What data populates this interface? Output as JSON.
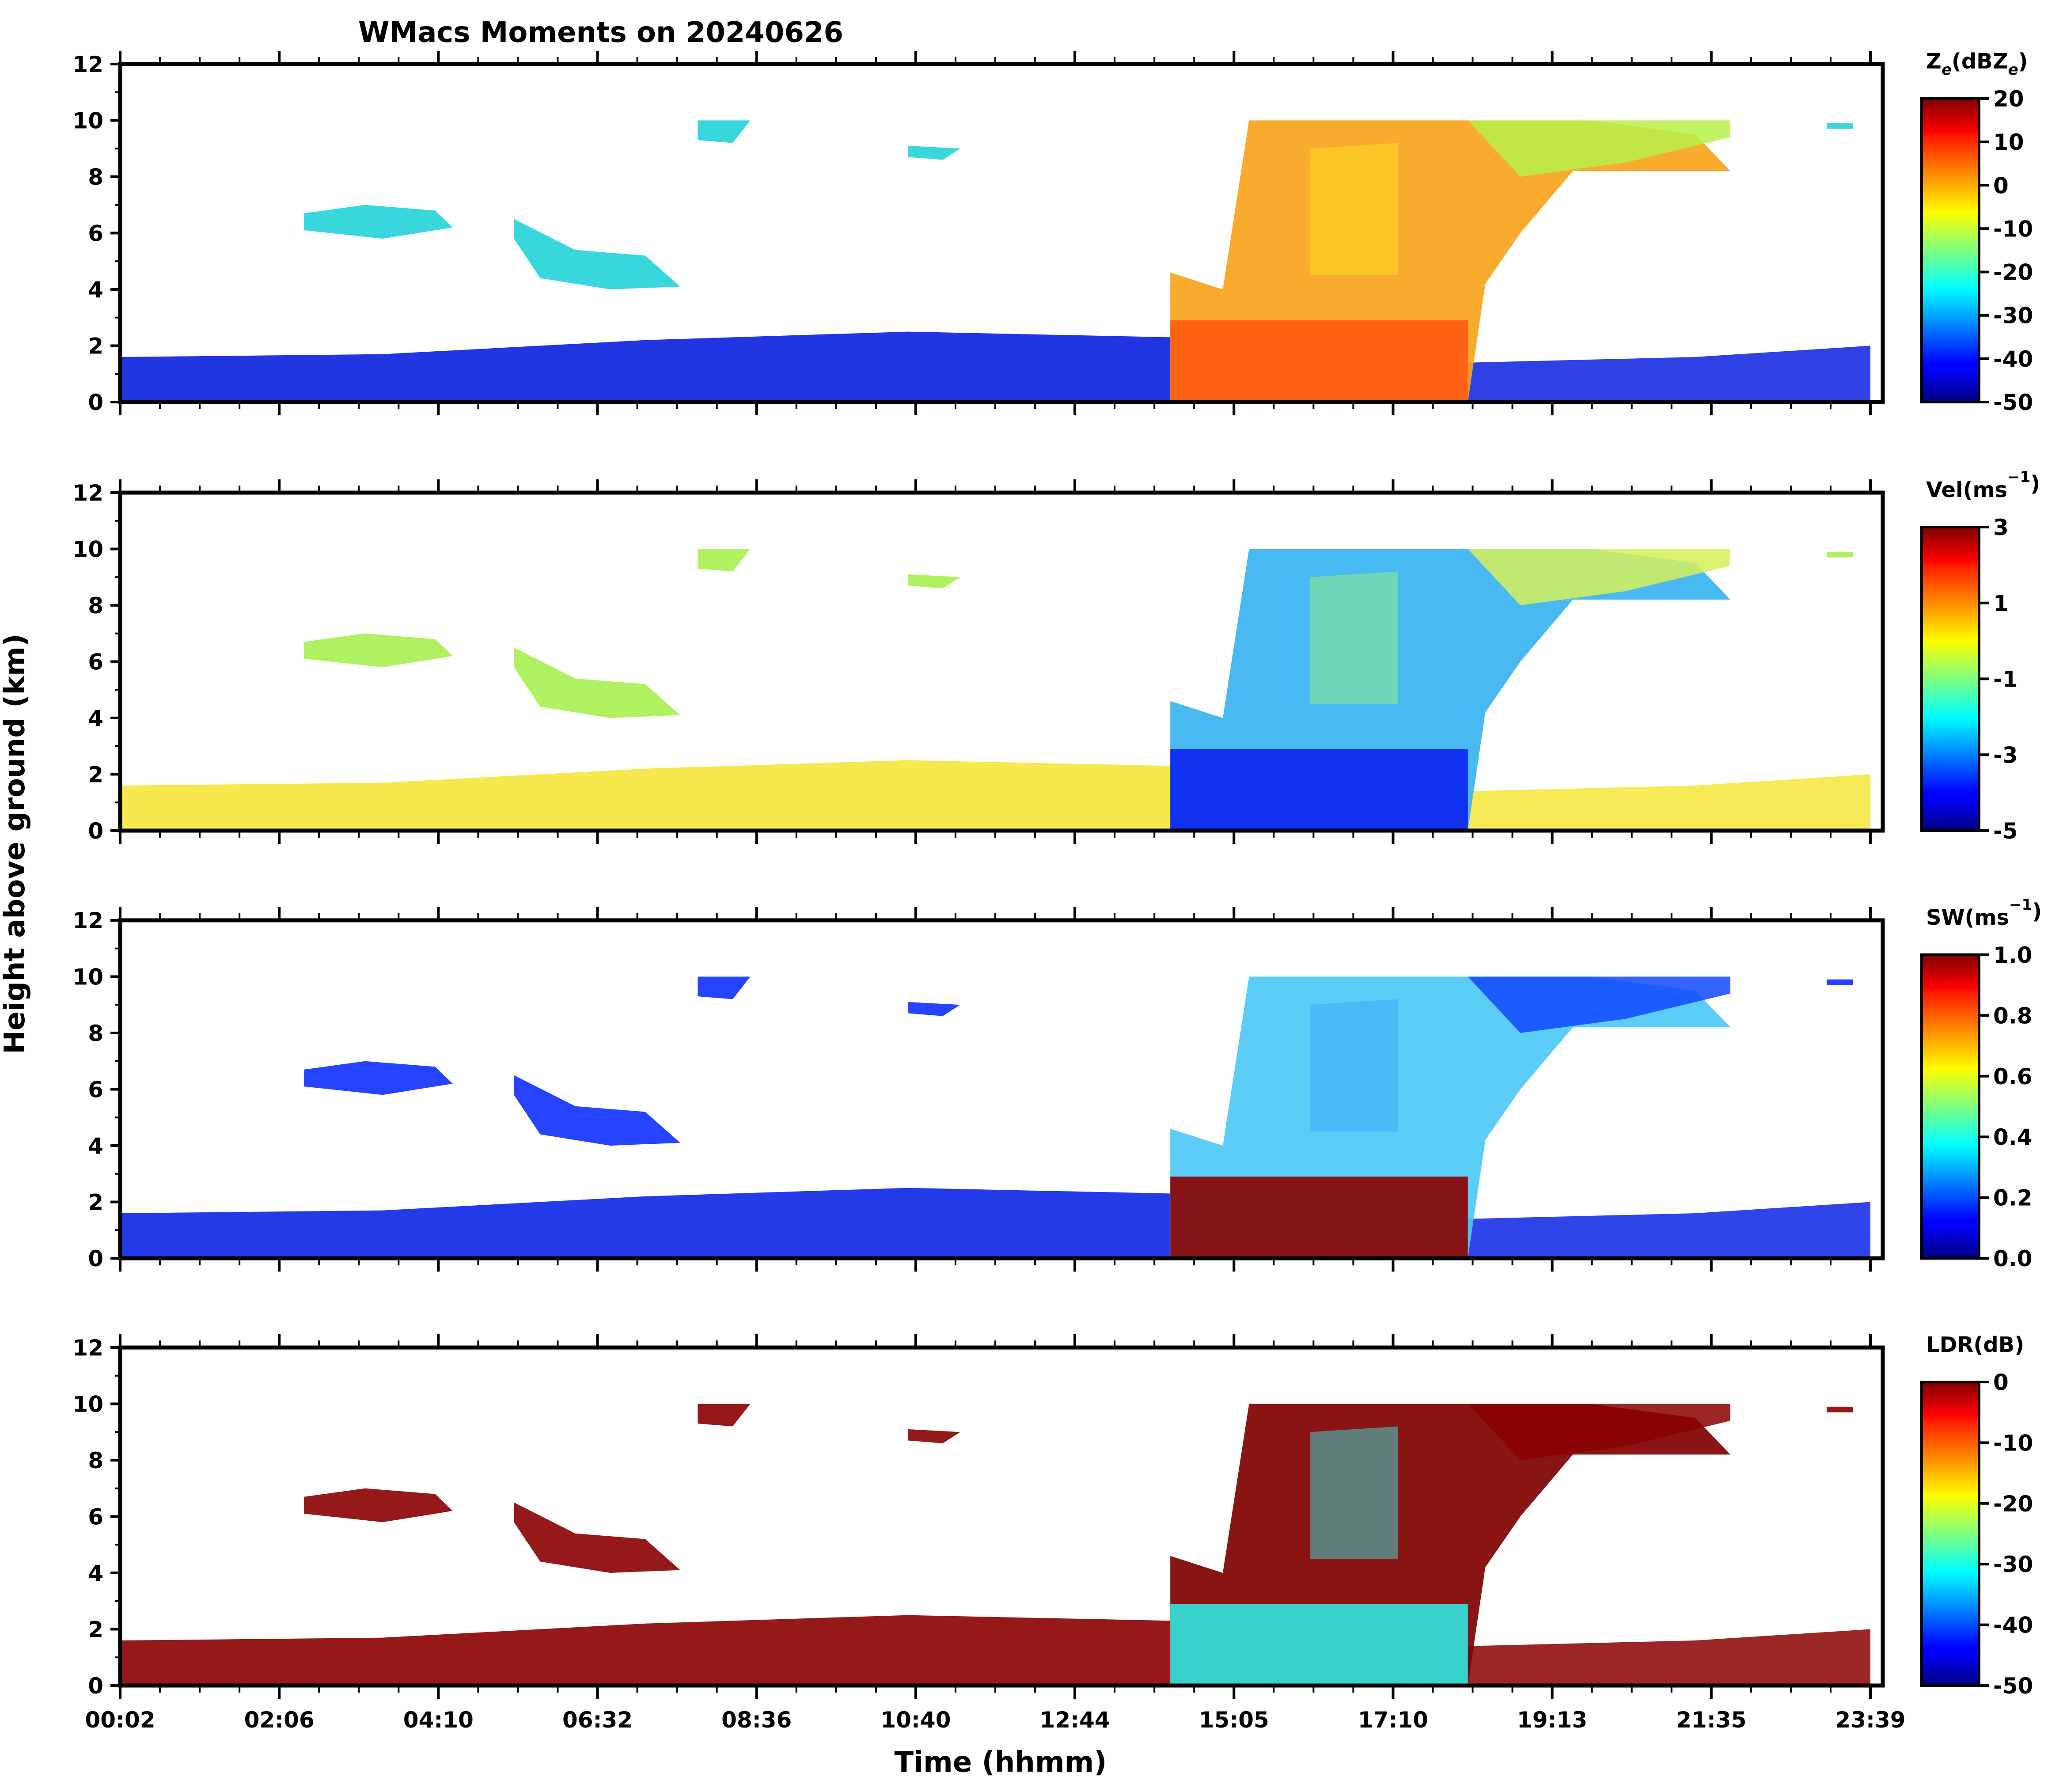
{
  "chart_data": {
    "type": "heatmap",
    "title": "WMacs Moments on 20240626",
    "xlabel": "Time (hhmm)",
    "ylabel": "Height above ground (km)",
    "x_ticks": [
      "00:02",
      "02:06",
      "04:10",
      "06:32",
      "08:36",
      "10:40",
      "12:44",
      "15:05",
      "17:10",
      "19:13",
      "21:35",
      "23:39"
    ],
    "y_ticks": [
      "0",
      "2",
      "4",
      "6",
      "8",
      "10",
      "12"
    ],
    "ylim": [
      0,
      12
    ],
    "panels": [
      {
        "name": "reflectivity",
        "colorbar_label": "Z_e(dBZ_e)",
        "label_main": "Z",
        "label_sub1": "e",
        "label_open": "(dBZ",
        "label_sub2": "e",
        "label_close": ")",
        "clim": [
          -50,
          20
        ],
        "ticks": [
          "20",
          "10",
          "0",
          "-10",
          "-20",
          "-30",
          "-40",
          "-50"
        ]
      },
      {
        "name": "velocity",
        "colorbar_label": "Vel(ms^-1)",
        "label_main": "Vel(ms",
        "label_sup": "−1",
        "label_close": ")",
        "clim": [
          -5,
          3
        ],
        "ticks": [
          "3",
          "1",
          "-1",
          "-3",
          "-5"
        ]
      },
      {
        "name": "spectral-width",
        "colorbar_label": "SW(ms^-1)",
        "label_main": "SW(ms",
        "label_sup": "−1",
        "label_close": ")",
        "clim": [
          0,
          1
        ],
        "ticks": [
          "1.0",
          "0.8",
          "0.6",
          "0.4",
          "0.2",
          "0.0"
        ]
      },
      {
        "name": "ldr",
        "colorbar_label": "LDR(dB)",
        "label_main": "LDR(dB)",
        "clim": [
          -50,
          0
        ],
        "ticks": [
          "0",
          "-10",
          "-20",
          "-30",
          "-40",
          "-50"
        ]
      }
    ]
  }
}
